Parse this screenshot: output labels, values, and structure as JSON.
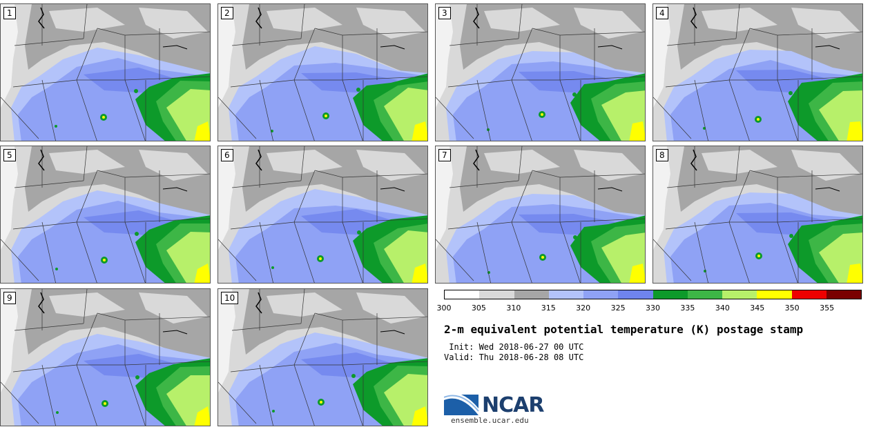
{
  "members": [
    "1",
    "2",
    "3",
    "4",
    "5",
    "6",
    "7",
    "8",
    "9",
    "10"
  ],
  "colorbar": {
    "ticks": [
      "300",
      "305",
      "310",
      "315",
      "320",
      "325",
      "330",
      "335",
      "340",
      "345",
      "350",
      "355"
    ],
    "colors": [
      "#ffffff",
      "#d9d9d9",
      "#a6a6a6",
      "#b3c3fa",
      "#8fa2f5",
      "#6f84ee",
      "#0d9a2a",
      "#3db646",
      "#b7f06a",
      "#ffff00",
      "#ee0000",
      "#7a0000"
    ]
  },
  "palette": {
    "ocean": "#f2f2f2",
    "lt_gray": "#d9d9d9",
    "gray": "#a6a6a6",
    "lt_blue": "#b3c3fa",
    "blue": "#8fa2f5",
    "dk_blue": "#6f84ee",
    "dk_green": "#0d9a2a",
    "green": "#3db646",
    "lt_green": "#b7f06a",
    "yellow": "#ffff00"
  },
  "title": "2-m equivalent potential temperature (K) postage stamp",
  "init": " Init: Wed 2018-06-27 00 UTC",
  "valid": "Valid: Thu 2018-06-28 08 UTC",
  "logo": {
    "name": "NCAR",
    "url": "ensemble.ucar.edu"
  }
}
